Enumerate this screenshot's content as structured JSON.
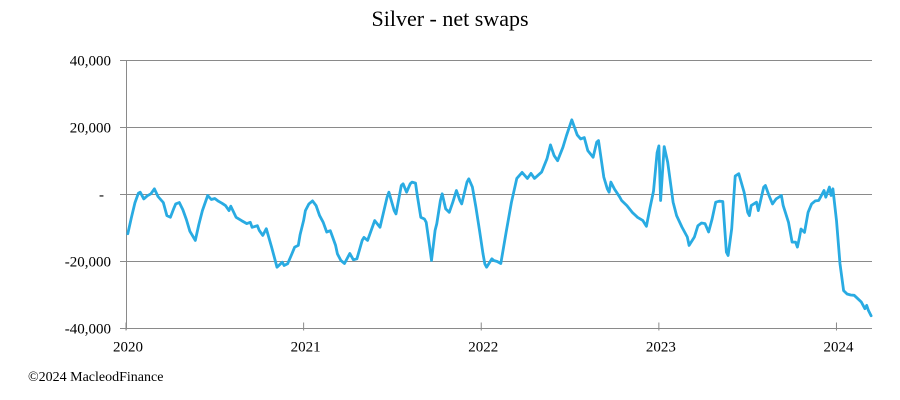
{
  "page": {
    "copyright": "©2024 MacleodFinance"
  },
  "chart_data": {
    "type": "line",
    "title": "Silver - net swaps",
    "xlabel": "",
    "ylabel": "",
    "xlim": [
      2020.0,
      2024.2
    ],
    "ylim": [
      -40000,
      40000
    ],
    "grid": "horizontal",
    "legend": "none",
    "line_color": "#29ABE2",
    "grid_color": "#8a8a8a",
    "axis_color": "#8a8a8a",
    "x_ticks": [
      2020,
      2021,
      2022,
      2023,
      2024
    ],
    "x_tick_labels": [
      "2020",
      "2021",
      "2022",
      "2023",
      "2024"
    ],
    "y_ticks": [
      40000,
      20000,
      0,
      -20000,
      -40000
    ],
    "y_tick_labels": [
      "40,000",
      "20,000",
      "-",
      "-20,000",
      "-40,000"
    ],
    "series": [
      {
        "name": "Silver net swaps",
        "points": [
          [
            2020.01,
            -11700
          ],
          [
            2020.03,
            -7000
          ],
          [
            2020.05,
            -2500
          ],
          [
            2020.07,
            400
          ],
          [
            2020.08,
            700
          ],
          [
            2020.1,
            -1300
          ],
          [
            2020.12,
            -400
          ],
          [
            2020.14,
            200
          ],
          [
            2020.16,
            1700
          ],
          [
            2020.18,
            -600
          ],
          [
            2020.2,
            -1800
          ],
          [
            2020.21,
            -2400
          ],
          [
            2020.23,
            -6300
          ],
          [
            2020.25,
            -6800
          ],
          [
            2020.27,
            -4000
          ],
          [
            2020.28,
            -2800
          ],
          [
            2020.3,
            -2400
          ],
          [
            2020.32,
            -4500
          ],
          [
            2020.34,
            -7500
          ],
          [
            2020.36,
            -11000
          ],
          [
            2020.39,
            -13700
          ],
          [
            2020.41,
            -9000
          ],
          [
            2020.43,
            -4800
          ],
          [
            2020.46,
            -300
          ],
          [
            2020.48,
            -1500
          ],
          [
            2020.5,
            -1200
          ],
          [
            2020.52,
            -2000
          ],
          [
            2020.54,
            -2600
          ],
          [
            2020.56,
            -3300
          ],
          [
            2020.58,
            -4800
          ],
          [
            2020.59,
            -3500
          ],
          [
            2020.62,
            -6800
          ],
          [
            2020.65,
            -7800
          ],
          [
            2020.68,
            -8700
          ],
          [
            2020.7,
            -8300
          ],
          [
            2020.71,
            -9800
          ],
          [
            2020.74,
            -9300
          ],
          [
            2020.75,
            -10700
          ],
          [
            2020.77,
            -12200
          ],
          [
            2020.79,
            -10200
          ],
          [
            2020.82,
            -15700
          ],
          [
            2020.84,
            -19700
          ],
          [
            2020.85,
            -21700
          ],
          [
            2020.88,
            -20200
          ],
          [
            2020.89,
            -21200
          ],
          [
            2020.91,
            -20700
          ],
          [
            2020.93,
            -18200
          ],
          [
            2020.95,
            -15700
          ],
          [
            2020.97,
            -15200
          ],
          [
            2020.98,
            -12000
          ],
          [
            2021.0,
            -7800
          ],
          [
            2021.01,
            -4800
          ],
          [
            2021.03,
            -2800
          ],
          [
            2021.05,
            -1900
          ],
          [
            2021.07,
            -3300
          ],
          [
            2021.09,
            -6300
          ],
          [
            2021.11,
            -8300
          ],
          [
            2021.13,
            -11200
          ],
          [
            2021.15,
            -10800
          ],
          [
            2021.16,
            -12200
          ],
          [
            2021.18,
            -15200
          ],
          [
            2021.19,
            -17700
          ],
          [
            2021.21,
            -19700
          ],
          [
            2021.23,
            -20600
          ],
          [
            2021.26,
            -17600
          ],
          [
            2021.28,
            -19500
          ],
          [
            2021.3,
            -19200
          ],
          [
            2021.33,
            -13700
          ],
          [
            2021.34,
            -12800
          ],
          [
            2021.36,
            -13700
          ],
          [
            2021.4,
            -7800
          ],
          [
            2021.43,
            -9800
          ],
          [
            2021.47,
            -800
          ],
          [
            2021.48,
            700
          ],
          [
            2021.51,
            -4800
          ],
          [
            2021.52,
            -5800
          ],
          [
            2021.55,
            2700
          ],
          [
            2021.56,
            3200
          ],
          [
            2021.58,
            700
          ],
          [
            2021.6,
            3200
          ],
          [
            2021.61,
            3700
          ],
          [
            2021.63,
            3400
          ],
          [
            2021.64,
            -300
          ],
          [
            2021.66,
            -6800
          ],
          [
            2021.68,
            -7300
          ],
          [
            2021.69,
            -8300
          ],
          [
            2021.71,
            -15700
          ],
          [
            2021.72,
            -19700
          ],
          [
            2021.74,
            -10700
          ],
          [
            2021.75,
            -8700
          ],
          [
            2021.77,
            -1800
          ],
          [
            2021.78,
            200
          ],
          [
            2021.8,
            -4300
          ],
          [
            2021.82,
            -5300
          ],
          [
            2021.84,
            -2300
          ],
          [
            2021.86,
            1200
          ],
          [
            2021.88,
            -1800
          ],
          [
            2021.89,
            -2800
          ],
          [
            2021.92,
            3700
          ],
          [
            2021.93,
            4700
          ],
          [
            2021.95,
            2200
          ],
          [
            2021.97,
            -3800
          ],
          [
            2021.99,
            -10700
          ],
          [
            2022.01,
            -17700
          ],
          [
            2022.02,
            -20700
          ],
          [
            2022.03,
            -21700
          ],
          [
            2022.06,
            -19200
          ],
          [
            2022.07,
            -19700
          ],
          [
            2022.09,
            -20000
          ],
          [
            2022.11,
            -20600
          ],
          [
            2022.14,
            -11300
          ],
          [
            2022.17,
            -2400
          ],
          [
            2022.2,
            4800
          ],
          [
            2022.23,
            6600
          ],
          [
            2022.26,
            4800
          ],
          [
            2022.28,
            6300
          ],
          [
            2022.3,
            4800
          ],
          [
            2022.34,
            6700
          ],
          [
            2022.37,
            10700
          ],
          [
            2022.39,
            14800
          ],
          [
            2022.41,
            11600
          ],
          [
            2022.43,
            10100
          ],
          [
            2022.46,
            14100
          ],
          [
            2022.48,
            17600
          ],
          [
            2022.51,
            22300
          ],
          [
            2022.54,
            17800
          ],
          [
            2022.56,
            16600
          ],
          [
            2022.58,
            17000
          ],
          [
            2022.6,
            13100
          ],
          [
            2022.63,
            11100
          ],
          [
            2022.65,
            15600
          ],
          [
            2022.66,
            16100
          ],
          [
            2022.69,
            5200
          ],
          [
            2022.71,
            1700
          ],
          [
            2022.72,
            700
          ],
          [
            2022.73,
            3700
          ],
          [
            2022.75,
            1600
          ],
          [
            2022.78,
            -800
          ],
          [
            2022.79,
            -1800
          ],
          [
            2022.82,
            -3300
          ],
          [
            2022.85,
            -5300
          ],
          [
            2022.88,
            -6800
          ],
          [
            2022.91,
            -7800
          ],
          [
            2022.93,
            -9500
          ],
          [
            2022.95,
            -4000
          ],
          [
            2022.97,
            1000
          ],
          [
            2022.99,
            12500
          ],
          [
            2023.0,
            14500
          ],
          [
            2023.01,
            -1800
          ],
          [
            2023.03,
            14300
          ],
          [
            2023.05,
            9600
          ],
          [
            2023.08,
            -2300
          ],
          [
            2023.1,
            -6300
          ],
          [
            2023.13,
            -9700
          ],
          [
            2023.16,
            -12700
          ],
          [
            2023.17,
            -15200
          ],
          [
            2023.2,
            -12700
          ],
          [
            2023.22,
            -9300
          ],
          [
            2023.24,
            -8500
          ],
          [
            2023.26,
            -8700
          ],
          [
            2023.28,
            -11200
          ],
          [
            2023.3,
            -7300
          ],
          [
            2023.32,
            -2300
          ],
          [
            2023.34,
            -2000
          ],
          [
            2023.36,
            -2100
          ],
          [
            2023.38,
            -17200
          ],
          [
            2023.39,
            -18200
          ],
          [
            2023.41,
            -10200
          ],
          [
            2023.43,
            5500
          ],
          [
            2023.45,
            6200
          ],
          [
            2023.48,
            700
          ],
          [
            2023.5,
            -5300
          ],
          [
            2023.51,
            -6300
          ],
          [
            2023.52,
            -3300
          ],
          [
            2023.55,
            -2300
          ],
          [
            2023.56,
            -4800
          ],
          [
            2023.59,
            2200
          ],
          [
            2023.6,
            2700
          ],
          [
            2023.62,
            -300
          ],
          [
            2023.64,
            -2800
          ],
          [
            2023.66,
            -1300
          ],
          [
            2023.69,
            -300
          ],
          [
            2023.7,
            -3300
          ],
          [
            2023.73,
            -8300
          ],
          [
            2023.75,
            -14200
          ],
          [
            2023.77,
            -14200
          ],
          [
            2023.78,
            -15700
          ],
          [
            2023.79,
            -13200
          ],
          [
            2023.8,
            -10300
          ],
          [
            2023.82,
            -11300
          ],
          [
            2023.84,
            -5300
          ],
          [
            2023.86,
            -2800
          ],
          [
            2023.88,
            -1900
          ],
          [
            2023.9,
            -1800
          ],
          [
            2023.92,
            200
          ],
          [
            2023.93,
            1200
          ],
          [
            2023.94,
            -800
          ],
          [
            2023.96,
            2200
          ],
          [
            2023.97,
            -300
          ],
          [
            2023.98,
            1700
          ],
          [
            2024.0,
            -7800
          ],
          [
            2024.02,
            -20700
          ],
          [
            2024.04,
            -28700
          ],
          [
            2024.06,
            -29700
          ],
          [
            2024.08,
            -30000
          ],
          [
            2024.1,
            -30100
          ],
          [
            2024.12,
            -31100
          ],
          [
            2024.14,
            -32100
          ],
          [
            2024.16,
            -34100
          ],
          [
            2024.17,
            -33100
          ],
          [
            2024.18,
            -34600
          ],
          [
            2024.195,
            -36200
          ]
        ]
      }
    ]
  }
}
